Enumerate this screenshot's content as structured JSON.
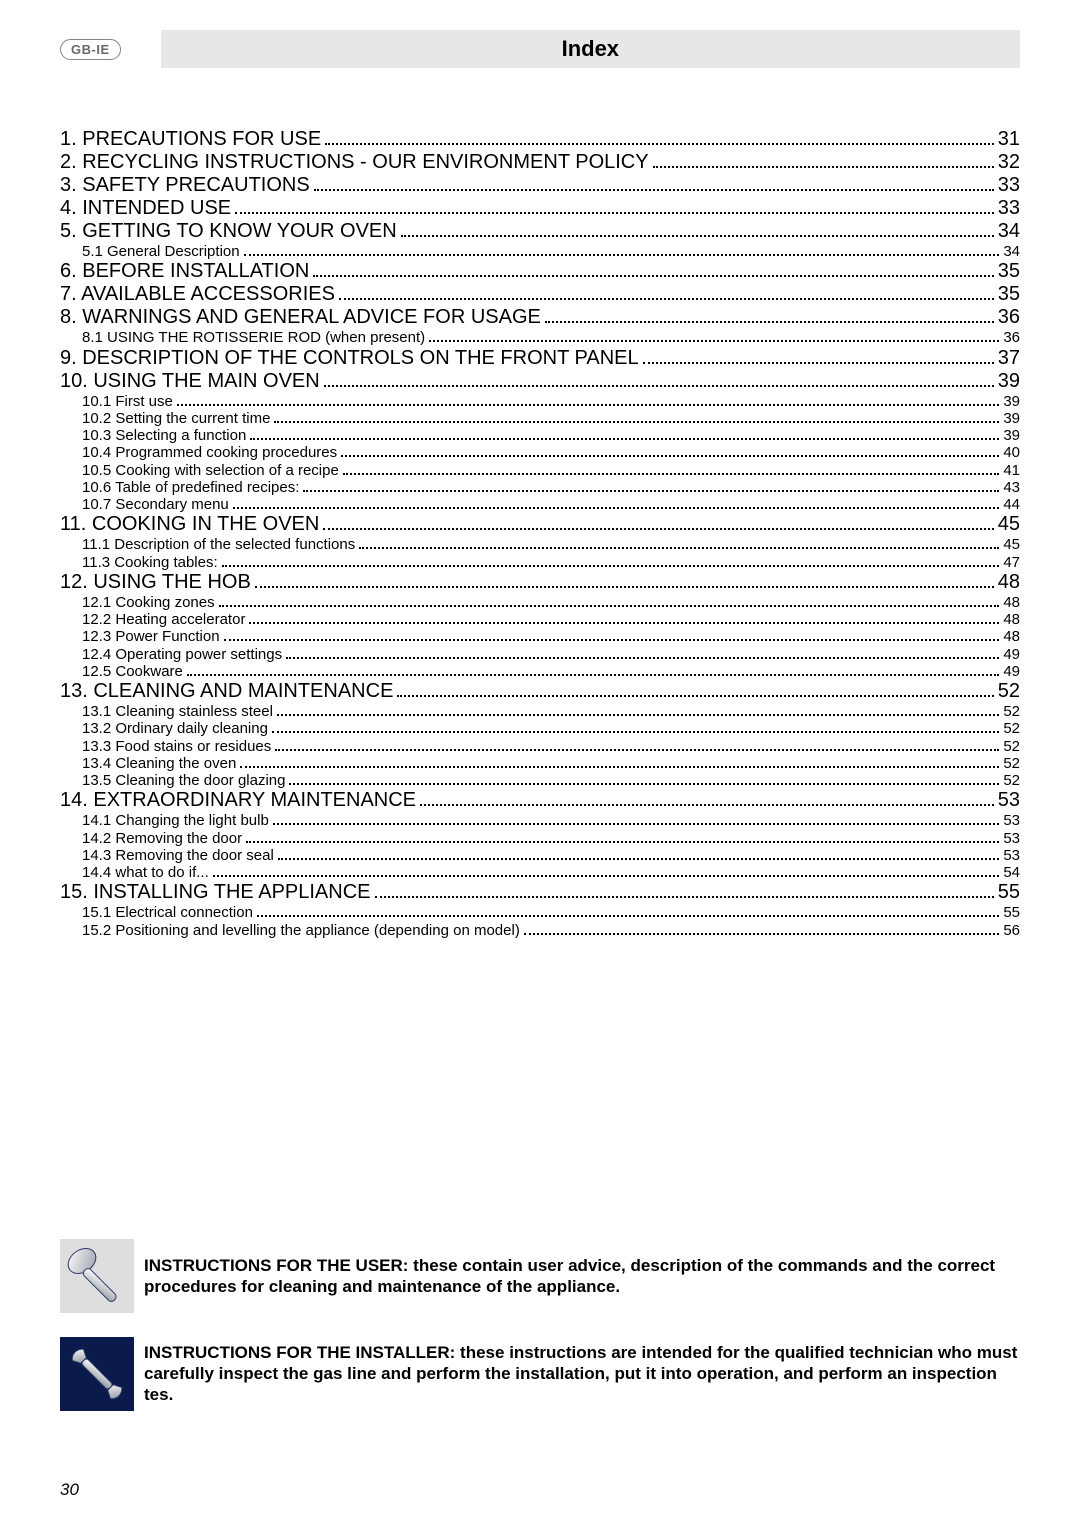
{
  "header": {
    "badge": "GB-IE",
    "title": "Index"
  },
  "toc": [
    {
      "level": 1,
      "label": "1. PRECAUTIONS FOR USE",
      "page": "31"
    },
    {
      "level": 1,
      "label": "2. RECYCLING INSTRUCTIONS - OUR ENVIRONMENT POLICY",
      "page": "32"
    },
    {
      "level": 1,
      "label": "3. SAFETY PRECAUTIONS",
      "page": "33"
    },
    {
      "level": 1,
      "label": "4. INTENDED USE",
      "page": "33"
    },
    {
      "level": 1,
      "label": "5. GETTING TO KNOW YOUR OVEN",
      "page": "34"
    },
    {
      "level": 2,
      "label": "5.1 General Description",
      "page": "34"
    },
    {
      "level": 1,
      "label": "6. BEFORE INSTALLATION",
      "page": "35"
    },
    {
      "level": 1,
      "label": "7. AVAILABLE ACCESSORIES",
      "page": "35"
    },
    {
      "level": 1,
      "label": "8. WARNINGS AND GENERAL ADVICE FOR USAGE",
      "page": "36"
    },
    {
      "level": 2,
      "label": "8.1 USING THE ROTISSERIE ROD  (when present)",
      "page": "36"
    },
    {
      "level": 1,
      "label": "9. DESCRIPTION OF THE CONTROLS ON THE FRONT PANEL",
      "page": "37"
    },
    {
      "level": 1,
      "label": "10. USING THE MAIN OVEN",
      "page": "39"
    },
    {
      "level": 2,
      "label": "10.1 First use",
      "page": "39"
    },
    {
      "level": 2,
      "label": "10.2 Setting the current time",
      "page": "39"
    },
    {
      "level": 2,
      "label": "10.3 Selecting a function",
      "page": "39"
    },
    {
      "level": 2,
      "label": "10.4 Programmed cooking procedures",
      "page": "40"
    },
    {
      "level": 2,
      "label": "10.5 Cooking with selection of a recipe",
      "page": "41"
    },
    {
      "level": 2,
      "label": "10.6 Table of predefined recipes:",
      "page": "43"
    },
    {
      "level": 2,
      "label": "10.7 Secondary menu",
      "page": "44"
    },
    {
      "level": 1,
      "label": "11. COOKING IN THE OVEN",
      "page": "45"
    },
    {
      "level": 2,
      "label": "11.1 Description of the selected functions",
      "page": "45"
    },
    {
      "level": 2,
      "label": "11.3 Cooking tables:",
      "page": "47"
    },
    {
      "level": 1,
      "label": "12. USING THE HOB",
      "page": "48"
    },
    {
      "level": 2,
      "label": "12.1 Cooking zones",
      "page": "48"
    },
    {
      "level": 2,
      "label": "12.2 Heating accelerator",
      "page": "48"
    },
    {
      "level": 2,
      "label": "12.3 Power Function",
      "page": "48"
    },
    {
      "level": 2,
      "label": "12.4 Operating power settings",
      "page": "49"
    },
    {
      "level": 2,
      "label": "12.5 Cookware",
      "page": "49"
    },
    {
      "level": 1,
      "label": "13. CLEANING AND MAINTENANCE",
      "page": "52"
    },
    {
      "level": 2,
      "label": "13.1 Cleaning stainless steel",
      "page": "52"
    },
    {
      "level": 2,
      "label": "13.2 Ordinary daily cleaning",
      "page": "52"
    },
    {
      "level": 2,
      "label": "13.3 Food stains or residues",
      "page": "52"
    },
    {
      "level": 2,
      "label": "13.4 Cleaning the oven",
      "page": "52"
    },
    {
      "level": 2,
      "label": "13.5 Cleaning the door glazing",
      "page": "52"
    },
    {
      "level": 1,
      "label": "14. EXTRAORDINARY MAINTENANCE",
      "page": "53"
    },
    {
      "level": 2,
      "label": "14.1 Changing the light bulb",
      "page": "53"
    },
    {
      "level": 2,
      "label": "14.2 Removing the door",
      "page": "53"
    },
    {
      "level": 2,
      "label": "14.3 Removing the door seal",
      "page": "53"
    },
    {
      "level": 2,
      "label": "14.4 what to do if...",
      "page": "54"
    },
    {
      "level": 1,
      "label": "15. INSTALLING THE APPLIANCE",
      "page": "55"
    },
    {
      "level": 2,
      "label": "15.1 Electrical connection",
      "page": "55"
    },
    {
      "level": 2,
      "label": "15.2 Positioning and levelling the appliance (depending on model)",
      "page": "56"
    }
  ],
  "callouts": {
    "user": "INSTRUCTIONS FOR THE USER: these contain user advice, description of the commands and the correct procedures for cleaning and maintenance of the appliance.",
    "installer": "INSTRUCTIONS FOR THE INSTALLER: these instructions are intended for the qualified technician who must carefully inspect the gas line and perform the installation, put it into operation, and perform an inspection tes."
  },
  "page_number": "30",
  "colors": {
    "title_bar_bg": "#e7e7e7",
    "badge_border": "#858585",
    "badge_text": "#6a6a6a",
    "icon_grey_bg": "#dedede",
    "icon_blue_bg": "#0a1a4a",
    "text": "#000000"
  }
}
